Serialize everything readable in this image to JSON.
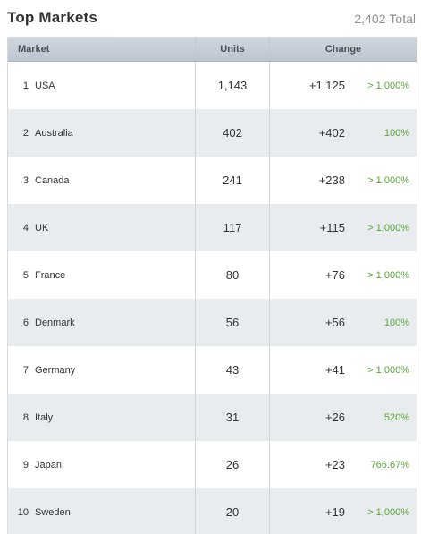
{
  "header": {
    "title": "Top Markets",
    "total_value": "2,402",
    "total_label": "Total"
  },
  "table": {
    "columns": [
      "Market",
      "Units",
      "Change"
    ],
    "rows": [
      {
        "rank": "1",
        "market": "USA",
        "units": "1,143",
        "change": "+1,125",
        "percent": "> 1,000%"
      },
      {
        "rank": "2",
        "market": "Australia",
        "units": "402",
        "change": "+402",
        "percent": "100%"
      },
      {
        "rank": "3",
        "market": "Canada",
        "units": "241",
        "change": "+238",
        "percent": "> 1,000%"
      },
      {
        "rank": "4",
        "market": "UK",
        "units": "117",
        "change": "+115",
        "percent": "> 1,000%"
      },
      {
        "rank": "5",
        "market": "France",
        "units": "80",
        "change": "+76",
        "percent": "> 1,000%"
      },
      {
        "rank": "6",
        "market": "Denmark",
        "units": "56",
        "change": "+56",
        "percent": "100%"
      },
      {
        "rank": "7",
        "market": "Germany",
        "units": "43",
        "change": "+41",
        "percent": "> 1,000%"
      },
      {
        "rank": "8",
        "market": "Italy",
        "units": "31",
        "change": "+26",
        "percent": "520%"
      },
      {
        "rank": "9",
        "market": "Japan",
        "units": "26",
        "change": "+23",
        "percent": "766.67%"
      },
      {
        "rank": "10",
        "market": "Sweden",
        "units": "20",
        "change": "+19",
        "percent": "> 1,000%"
      }
    ]
  },
  "colors": {
    "positive_percent": "#5aa53c",
    "header_bg": "#c6ced8",
    "stripe_bg": "#e9ecef"
  }
}
